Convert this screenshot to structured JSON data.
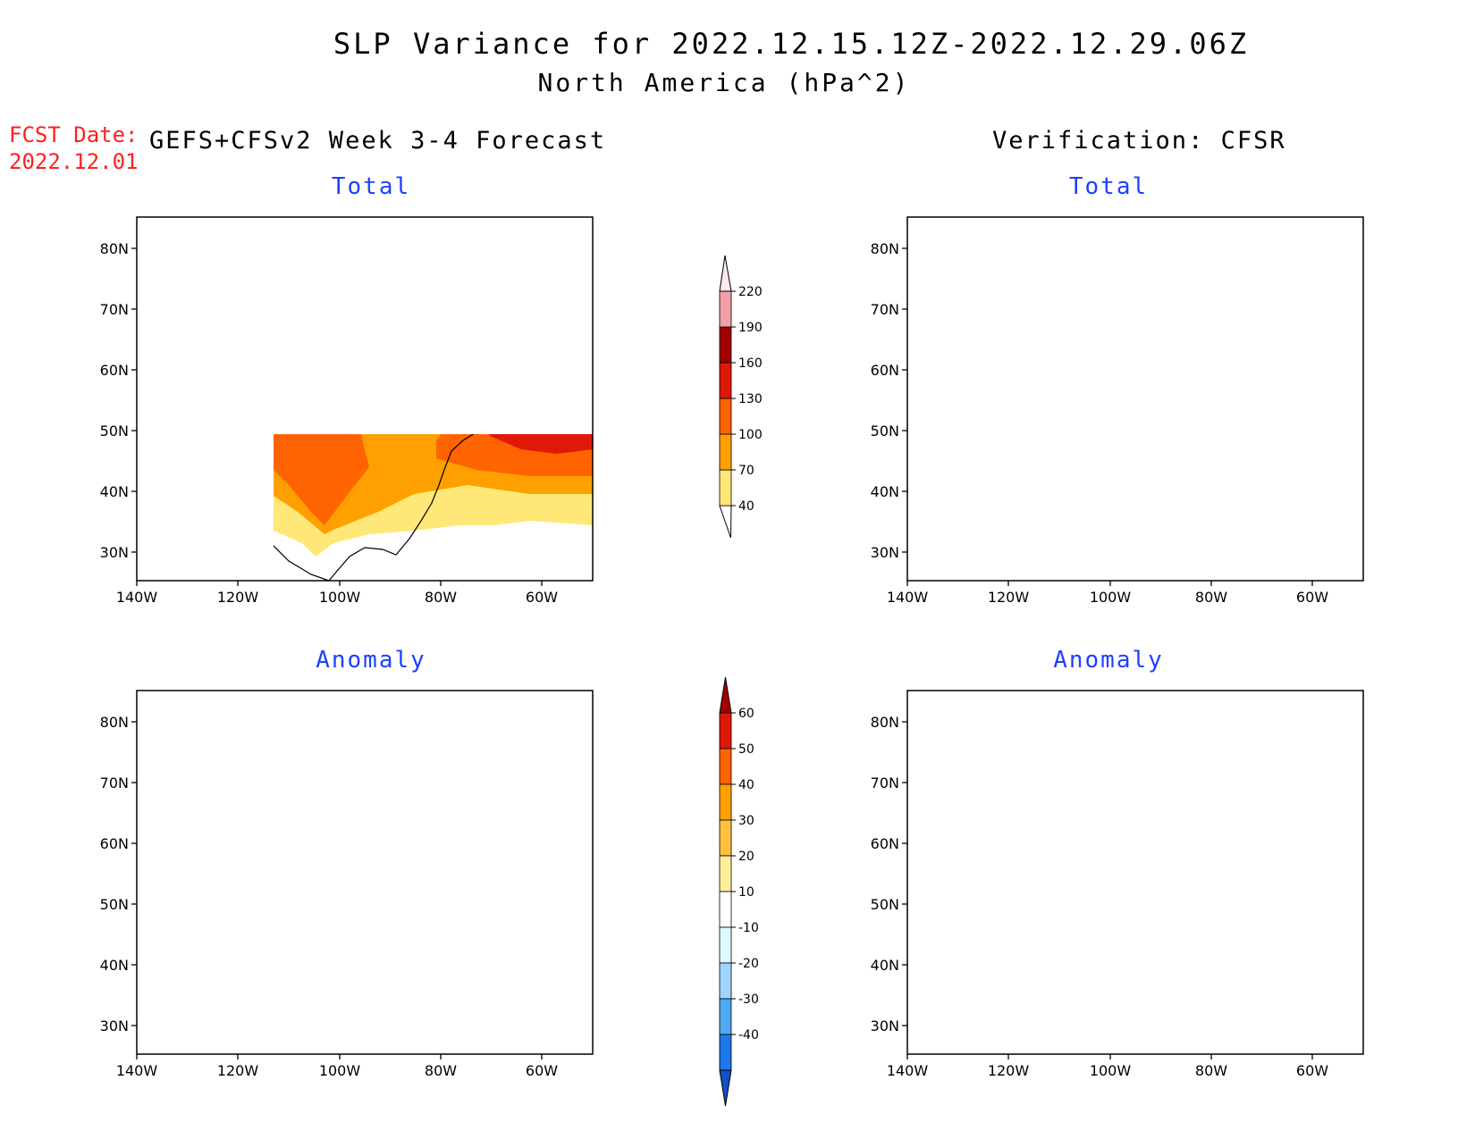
{
  "header": {
    "title": "SLP Variance for 2022.12.15.12Z-2022.12.29.06Z",
    "subtitle": "North America (hPa^2)",
    "fcst_label": "FCST Date:",
    "fcst_date": "2022.12.01",
    "left_column": "GEFS+CFSv2 Week 3-4 Forecast",
    "right_column": "Verification: CFSR"
  },
  "panels": {
    "forecast_total_title": "Total",
    "verification_total_title": "Total",
    "forecast_anomaly_title": "Anomaly",
    "verification_anomaly_title": "Anomaly"
  },
  "axes": {
    "lat_labels": [
      "80N",
      "70N",
      "60N",
      "50N",
      "40N",
      "30N"
    ],
    "lon_labels": [
      "140W",
      "120W",
      "100W",
      "80W",
      "60W"
    ]
  },
  "colorbars": {
    "total": {
      "levels": [
        "40",
        "70",
        "100",
        "130",
        "160",
        "190",
        "220"
      ],
      "colors": [
        "#ffe878",
        "#ffa000",
        "#ff6400",
        "#e01808",
        "#a00000",
        "#f0a0a8",
        "#ffe8ec"
      ]
    },
    "anomaly": {
      "levels": [
        "60",
        "50",
        "40",
        "30",
        "20",
        "10",
        "-10",
        "-20",
        "-30",
        "-40"
      ],
      "colors": [
        "#a00000",
        "#e01808",
        "#ff6400",
        "#ffa000",
        "#ffc040",
        "#ffef9a",
        "#ffffff",
        "#e0f8ff",
        "#a0d4ff",
        "#50a8f0",
        "#1e78e8",
        "#1450c8"
      ]
    }
  }
}
